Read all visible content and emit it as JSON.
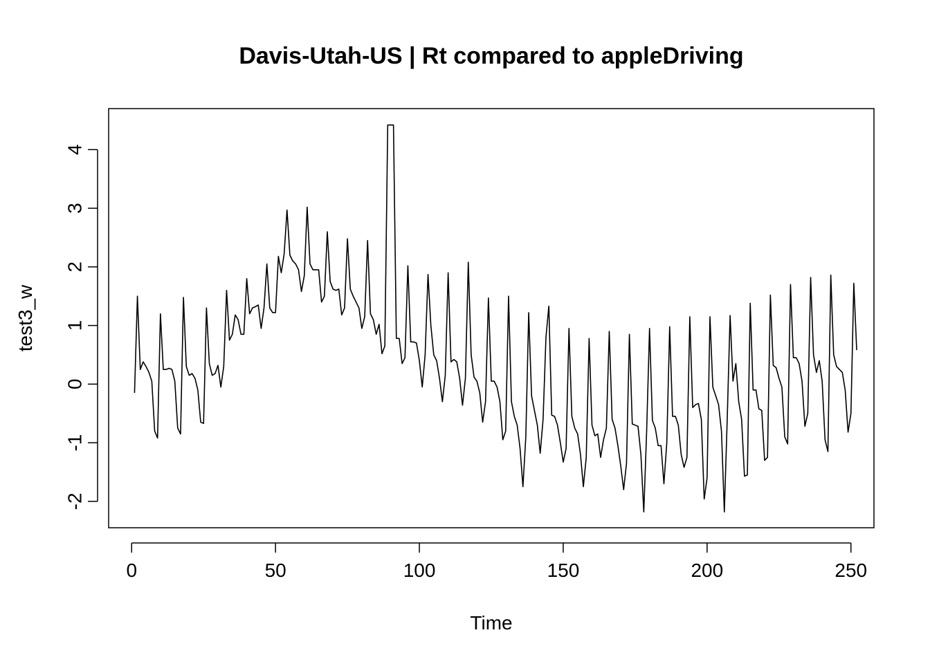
{
  "chart_data": {
    "type": "line",
    "title": "Davis-Utah-US | Rt compared to appleDriving",
    "xlabel": "Time",
    "ylabel": "test3_w",
    "xlim": [
      -8,
      258
    ],
    "ylim": [
      -2.45,
      4.7
    ],
    "x_ticks": [
      0,
      50,
      100,
      150,
      200,
      250
    ],
    "y_ticks": [
      -2,
      -1,
      0,
      1,
      2,
      3,
      4
    ],
    "grid": false,
    "legend": "none",
    "line_color": "#000000",
    "series": [
      {
        "x_start": 1,
        "values": [
          -0.15,
          1.5,
          0.25,
          0.38,
          0.3,
          0.2,
          0.05,
          -0.8,
          -0.92,
          1.2,
          0.25,
          0.25,
          0.27,
          0.25,
          0.05,
          -0.75,
          -0.85,
          1.48,
          0.3,
          0.15,
          0.18,
          0.1,
          -0.1,
          -0.65,
          -0.67,
          1.3,
          0.35,
          0.15,
          0.18,
          0.32,
          -0.05,
          0.3,
          1.6,
          0.75,
          0.85,
          1.18,
          1.1,
          0.85,
          0.85,
          1.8,
          1.2,
          1.3,
          1.32,
          1.35,
          0.95,
          1.3,
          2.05,
          1.3,
          1.22,
          1.22,
          2.18,
          1.9,
          2.22,
          2.97,
          2.2,
          2.1,
          2.05,
          1.95,
          1.58,
          1.85,
          3.02,
          2.05,
          1.95,
          1.95,
          1.95,
          1.4,
          1.5,
          2.6,
          1.75,
          1.62,
          1.6,
          1.62,
          1.18,
          1.3,
          2.48,
          1.62,
          1.5,
          1.4,
          1.3,
          0.95,
          1.15,
          2.45,
          1.2,
          1.1,
          0.85,
          1.02,
          0.52,
          0.65,
          4.42,
          4.42,
          4.42,
          0.78,
          0.78,
          0.35,
          0.45,
          2.02,
          0.72,
          0.72,
          0.7,
          0.4,
          -0.05,
          0.5,
          1.87,
          1.0,
          0.5,
          0.4,
          0.1,
          -0.3,
          0.15,
          1.9,
          0.38,
          0.42,
          0.38,
          0.1,
          -0.36,
          0.1,
          2.08,
          0.5,
          0.12,
          0.05,
          -0.15,
          -0.65,
          -0.3,
          1.47,
          0.05,
          0.05,
          -0.05,
          -0.3,
          -0.95,
          -0.8,
          1.5,
          -0.3,
          -0.55,
          -0.7,
          -1.1,
          -1.75,
          -0.9,
          1.22,
          -0.2,
          -0.45,
          -0.7,
          -1.18,
          -0.6,
          0.8,
          1.33,
          -0.53,
          -0.55,
          -0.7,
          -1.0,
          -1.33,
          -1.1,
          0.95,
          -0.55,
          -0.75,
          -0.85,
          -1.2,
          -1.75,
          -1.25,
          0.78,
          -0.7,
          -0.88,
          -0.85,
          -1.25,
          -0.95,
          -0.75,
          0.9,
          -0.6,
          -0.75,
          -1.05,
          -1.4,
          -1.8,
          -1.35,
          0.85,
          -0.68,
          -0.7,
          -0.72,
          -1.2,
          -2.18,
          -0.8,
          0.95,
          -0.62,
          -0.75,
          -1.05,
          -1.05,
          -1.7,
          -1.0,
          0.98,
          -0.55,
          -0.55,
          -0.7,
          -1.2,
          -1.42,
          -1.25,
          1.15,
          -0.4,
          -0.35,
          -0.33,
          -0.6,
          -1.96,
          -1.6,
          1.15,
          -0.05,
          -0.2,
          -0.35,
          -0.8,
          -2.18,
          -0.6,
          1.17,
          0.05,
          0.35,
          -0.3,
          -0.6,
          -1.57,
          -1.55,
          1.38,
          -0.1,
          -0.1,
          -0.42,
          -0.45,
          -1.3,
          -1.25,
          1.52,
          0.32,
          0.28,
          0.1,
          -0.05,
          -0.9,
          -1.02,
          1.7,
          0.45,
          0.45,
          0.35,
          0.05,
          -0.72,
          -0.5,
          1.82,
          0.5,
          0.2,
          0.4,
          0.05,
          -0.95,
          -1.15,
          1.86,
          0.5,
          0.3,
          0.25,
          0.2,
          -0.1,
          -0.82,
          -0.5,
          1.72,
          0.58
        ]
      }
    ]
  }
}
